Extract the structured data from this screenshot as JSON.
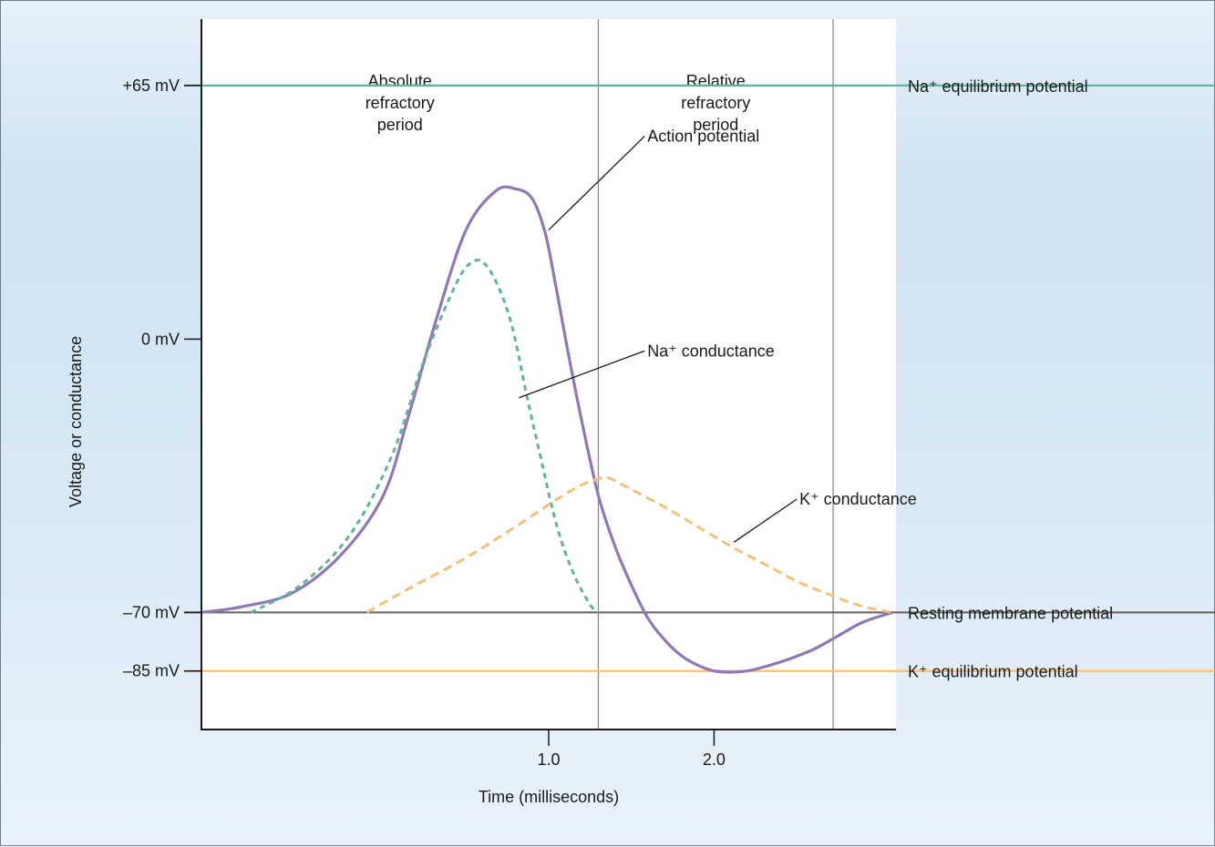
{
  "chart_data": {
    "type": "line",
    "title": "",
    "xlabel": "Time (milliseconds)",
    "ylabel": "Voltage or conductance",
    "x_ticks": [
      {
        "value": 1.0,
        "label": "1.0"
      },
      {
        "value": 2.0,
        "label": "2.0"
      }
    ],
    "y_ticks": [
      {
        "value": 65,
        "label": "+65 mV"
      },
      {
        "value": 0,
        "label": "0 mV"
      },
      {
        "value": -70,
        "label": "–70 mV"
      },
      {
        "value": -85,
        "label": "–85 mV"
      }
    ],
    "xlim": [
      -1.1,
      3.1
    ],
    "ylim": [
      -100,
      82
    ],
    "reference_lines": [
      {
        "value": 65,
        "label": "Na⁺ equilibrium potential",
        "color": "#5fb49c"
      },
      {
        "value": -70,
        "label": "Resting membrane potential",
        "color": "#666666"
      },
      {
        "value": -85,
        "label": "K⁺ equilibrium potential",
        "color": "#f5c07a"
      }
    ],
    "period_boundaries": [
      1.3,
      2.72
    ],
    "periods": [
      {
        "start": -1.1,
        "end": 1.3,
        "lines": [
          "Absolute",
          "refractory",
          "period"
        ]
      },
      {
        "start": 1.3,
        "end": 2.72,
        "lines": [
          "Relative",
          "refractory",
          "period"
        ]
      }
    ],
    "series": [
      {
        "name": "Action potential",
        "color": "#8f78b8",
        "dash": "solid",
        "x": [
          -1.1,
          -0.85,
          -0.55,
          -0.25,
          0.0,
          0.15,
          0.32,
          0.5,
          0.68,
          0.8,
          0.9,
          0.98,
          1.05,
          1.12,
          1.2,
          1.3,
          1.4,
          1.5,
          1.6,
          1.7,
          1.8,
          1.9,
          2.0,
          2.1,
          2.2,
          2.3,
          2.45,
          2.6,
          2.75,
          2.9,
          3.08
        ],
        "y": [
          -70,
          -68.5,
          -65,
          -55,
          -40,
          -20,
          5,
          28,
          38,
          38.5,
          36,
          27,
          12,
          -4,
          -21,
          -40,
          -53,
          -63,
          -71.5,
          -77,
          -81,
          -83.5,
          -85,
          -85.3,
          -85,
          -84,
          -82,
          -79.5,
          -76,
          -72.5,
          -70
        ]
      },
      {
        "name": "Na⁺ conductance",
        "color": "#5fb49c",
        "dash": "6,5",
        "x": [
          -0.8,
          -0.5,
          -0.2,
          0.05,
          0.25,
          0.45,
          0.55,
          0.62,
          0.7,
          0.78,
          0.87,
          0.95,
          1.05,
          1.15,
          1.25,
          1.3
        ],
        "y": [
          -70,
          -63,
          -50,
          -30,
          -5,
          15,
          20,
          19,
          13,
          3,
          -15,
          -30,
          -48,
          -60,
          -68,
          -70
        ]
      },
      {
        "name": "K⁺ conductance",
        "color": "#f5c07a",
        "dash": "10,6",
        "x": [
          -0.1,
          0.15,
          0.5,
          0.8,
          1.05,
          1.2,
          1.3,
          1.36,
          1.5,
          1.7,
          1.9,
          2.1,
          2.3,
          2.5,
          2.7,
          2.9,
          3.08
        ],
        "y": [
          -70,
          -64,
          -56,
          -48,
          -41,
          -37.3,
          -35.8,
          -35.5,
          -38.5,
          -43,
          -48,
          -53,
          -57.5,
          -62,
          -65.5,
          -68.5,
          -70
        ]
      }
    ],
    "annotations": [
      {
        "text": "Action potential",
        "point": [
          1.0,
          28
        ],
        "anchor": [
          1.58,
          52
        ]
      },
      {
        "text": "Na⁺ conductance",
        "point": [
          0.82,
          -15
        ],
        "anchor": [
          1.58,
          -3
        ]
      },
      {
        "text": "K⁺ conductance",
        "point": [
          2.12,
          -52
        ],
        "anchor": [
          2.5,
          -41
        ]
      }
    ],
    "grid": false,
    "legend": "none"
  }
}
